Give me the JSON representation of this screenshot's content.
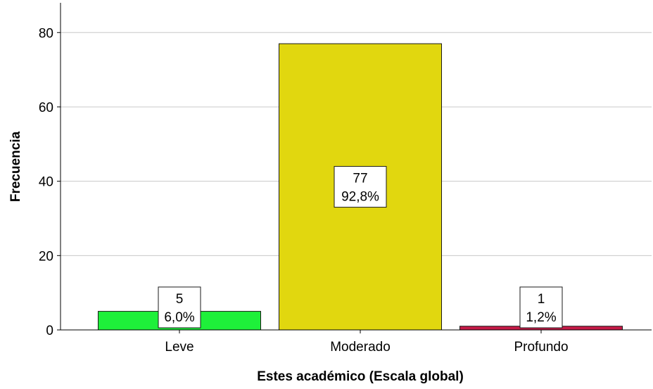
{
  "chart_data": {
    "type": "bar",
    "title": "",
    "xlabel": "Estes académico (Escala global)",
    "ylabel": "Frecuencia",
    "categories": [
      "Leve",
      "Moderado",
      "Profundo"
    ],
    "values": [
      5,
      77,
      1
    ],
    "value_labels": [
      "5",
      "77",
      "1"
    ],
    "percent_labels": [
      "6,0%",
      "92,8%",
      "1,2%"
    ],
    "bar_colors": [
      "#1ef03a",
      "#e1d70f",
      "#c51a47"
    ],
    "ylim": [
      0,
      88
    ],
    "yticks": [
      0,
      20,
      40,
      60,
      80
    ],
    "ytick_labels": [
      "0",
      "20",
      "40",
      "60",
      "80"
    ],
    "grid": true,
    "legend": "none"
  }
}
